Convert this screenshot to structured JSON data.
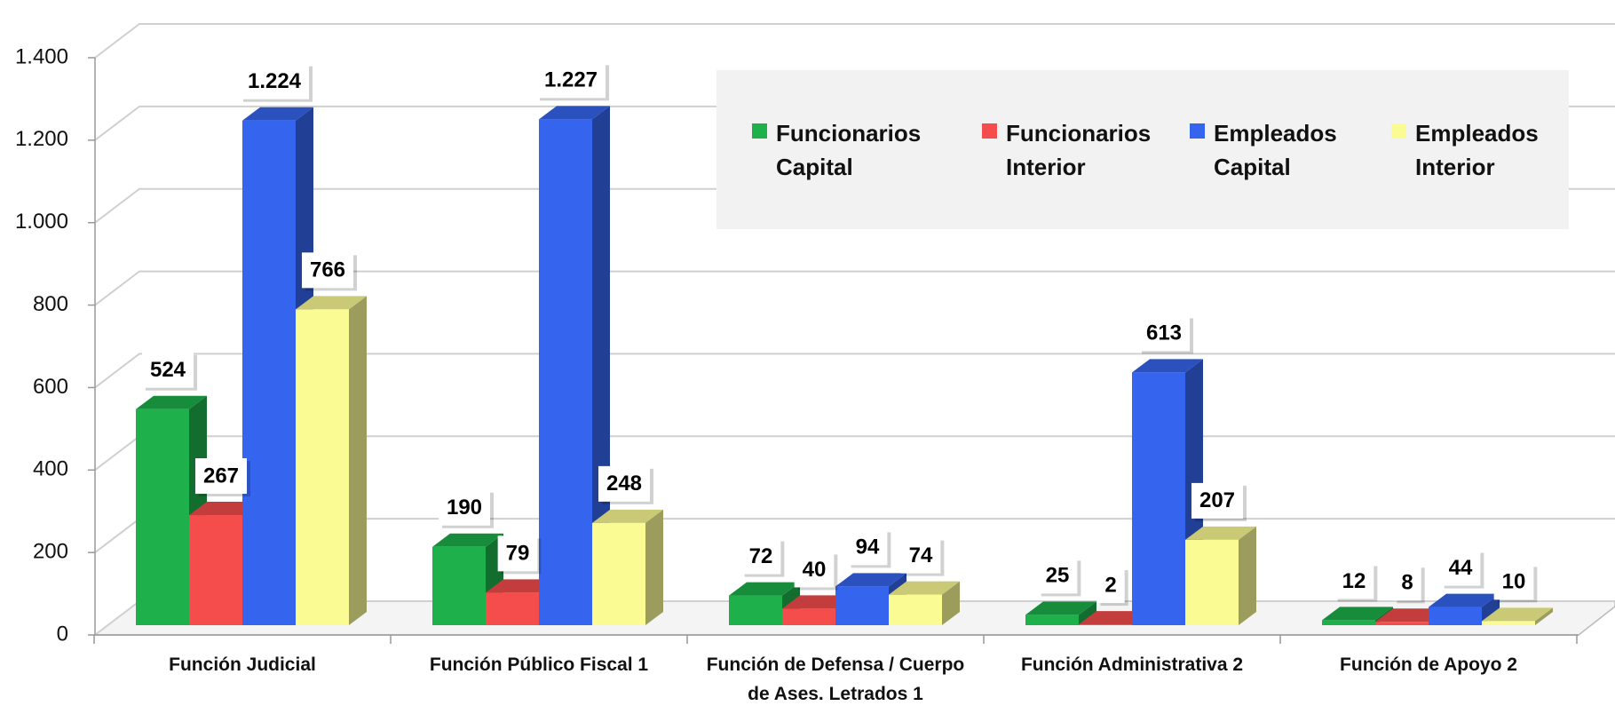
{
  "chart_data": {
    "type": "bar3d",
    "categories": [
      "Función Judicial",
      "Función Público Fiscal 1",
      "Función de Defensa / Cuerpo de Ases. Letrados 1",
      "Función Administrativa 2",
      "Función de Apoyo 2"
    ],
    "series": [
      {
        "name": "Funcionarios Capital",
        "color": "#1db04b",
        "values": [
          524,
          190,
          72,
          25,
          12
        ],
        "value_labels": [
          "524",
          "190",
          "72",
          "25",
          "12"
        ]
      },
      {
        "name": "Funcionarios Interior",
        "color": "#f54c4c",
        "values": [
          267,
          79,
          40,
          2,
          8
        ],
        "value_labels": [
          "267",
          "79",
          "40",
          "2",
          "8"
        ]
      },
      {
        "name": "Empleados Capital",
        "color": "#3565ee",
        "values": [
          1224,
          1227,
          94,
          613,
          44
        ],
        "value_labels": [
          "1.224",
          "1.227",
          "94",
          "613",
          "44"
        ]
      },
      {
        "name": "Empleados Interior",
        "color": "#fbfb94",
        "values": [
          766,
          248,
          74,
          207,
          10
        ],
        "value_labels": [
          "766",
          "248",
          "74",
          "207",
          "10"
        ]
      }
    ],
    "ylim": [
      0,
      1400
    ],
    "yticks": [
      0,
      200,
      400,
      600,
      800,
      {
        "value": 1000,
        "label": "1.000"
      },
      {
        "value": 1200,
        "label": "1.200"
      },
      {
        "value": 1400,
        "label": "1.400"
      }
    ],
    "grid": true,
    "legend": "top-right"
  }
}
